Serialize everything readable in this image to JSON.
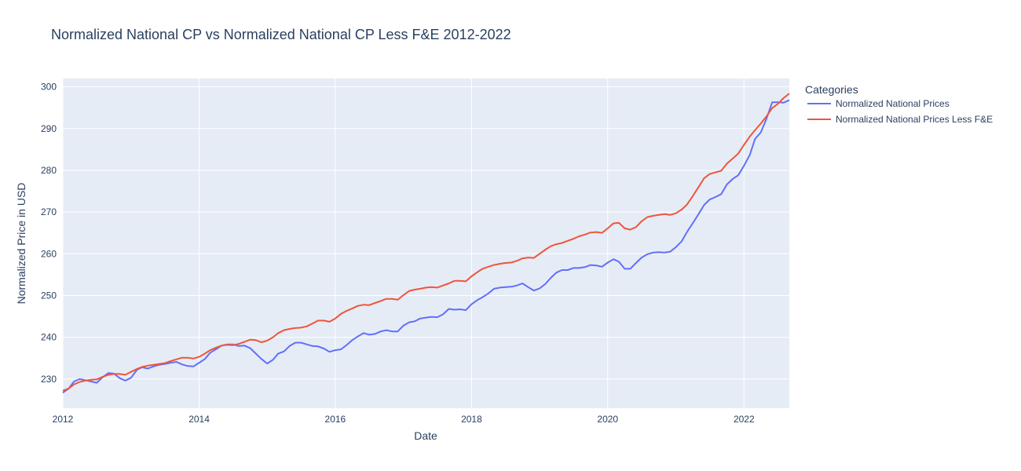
{
  "chart_data": {
    "type": "line",
    "title": "Normalized National CP vs Normalized National CP Less F&E 2012-2022",
    "xlabel": "Date",
    "ylabel": "Normalized Price in USD",
    "xlim": [
      "2012-01-01",
      "2022-09-01"
    ],
    "ylim": [
      223,
      302
    ],
    "x_ticks": [
      "2012",
      "2014",
      "2016",
      "2018",
      "2020",
      "2022"
    ],
    "y_ticks": [
      230,
      240,
      250,
      260,
      270,
      280,
      290,
      300
    ],
    "grid": true,
    "legend_title": "Categories",
    "legend_position": "right",
    "series": [
      {
        "name": "Normalized National Prices",
        "color": "#636efa",
        "x": [
          "2012-01",
          "2012-02",
          "2012-03",
          "2012-04",
          "2012-05",
          "2012-06",
          "2012-07",
          "2012-08",
          "2012-09",
          "2012-10",
          "2012-11",
          "2012-12",
          "2013-01",
          "2013-02",
          "2013-03",
          "2013-04",
          "2013-05",
          "2013-06",
          "2013-07",
          "2013-08",
          "2013-09",
          "2013-10",
          "2013-11",
          "2013-12",
          "2014-01",
          "2014-02",
          "2014-03",
          "2014-04",
          "2014-05",
          "2014-06",
          "2014-07",
          "2014-08",
          "2014-09",
          "2014-10",
          "2014-11",
          "2014-12",
          "2015-01",
          "2015-02",
          "2015-03",
          "2015-04",
          "2015-05",
          "2015-06",
          "2015-07",
          "2015-08",
          "2015-09",
          "2015-10",
          "2015-11",
          "2015-12",
          "2016-01",
          "2016-02",
          "2016-03",
          "2016-04",
          "2016-05",
          "2016-06",
          "2016-07",
          "2016-08",
          "2016-09",
          "2016-10",
          "2016-11",
          "2016-12",
          "2017-01",
          "2017-02",
          "2017-03",
          "2017-04",
          "2017-05",
          "2017-06",
          "2017-07",
          "2017-08",
          "2017-09",
          "2017-10",
          "2017-11",
          "2017-12",
          "2018-01",
          "2018-02",
          "2018-03",
          "2018-04",
          "2018-05",
          "2018-06",
          "2018-07",
          "2018-08",
          "2018-09",
          "2018-10",
          "2018-11",
          "2018-12",
          "2019-01",
          "2019-02",
          "2019-03",
          "2019-04",
          "2019-05",
          "2019-06",
          "2019-07",
          "2019-08",
          "2019-09",
          "2019-10",
          "2019-11",
          "2019-12",
          "2020-01",
          "2020-02",
          "2020-03",
          "2020-04",
          "2020-05",
          "2020-06",
          "2020-07",
          "2020-08",
          "2020-09",
          "2020-10",
          "2020-11",
          "2020-12",
          "2021-01",
          "2021-02",
          "2021-03",
          "2021-04",
          "2021-05",
          "2021-06",
          "2021-07",
          "2021-08",
          "2021-09",
          "2021-10",
          "2021-11",
          "2021-12",
          "2022-01",
          "2022-02",
          "2022-03",
          "2022-04",
          "2022-05",
          "2022-06",
          "2022-07",
          "2022-08",
          "2022-09"
        ],
        "values": [
          226.7,
          227.7,
          229.4,
          230.0,
          229.7,
          229.4,
          229.1,
          230.4,
          231.4,
          231.3,
          230.2,
          229.6,
          230.3,
          232.2,
          232.8,
          232.5,
          233.0,
          233.4,
          233.6,
          233.9,
          234.1,
          233.5,
          233.1,
          233.0,
          233.9,
          234.8,
          236.3,
          237.1,
          238.0,
          238.3,
          238.3,
          237.9,
          238.0,
          237.4,
          236.1,
          234.8,
          233.7,
          234.6,
          236.1,
          236.6,
          237.9,
          238.7,
          238.7,
          238.3,
          237.9,
          237.8,
          237.3,
          236.5,
          236.9,
          237.1,
          238.1,
          239.3,
          240.2,
          241.0,
          240.6,
          240.8,
          241.4,
          241.7,
          241.4,
          241.4,
          242.8,
          243.6,
          243.8,
          244.5,
          244.7,
          244.9,
          244.8,
          245.5,
          246.8,
          246.6,
          246.7,
          246.5,
          247.9,
          248.9,
          249.6,
          250.5,
          251.6,
          251.9,
          252.0,
          252.1,
          252.4,
          252.9,
          252.0,
          251.2,
          251.7,
          252.8,
          254.2,
          255.5,
          256.1,
          256.1,
          256.6,
          256.6,
          256.8,
          257.3,
          257.2,
          256.9,
          257.9,
          258.7,
          258.1,
          256.4,
          256.4,
          257.8,
          259.1,
          259.9,
          260.3,
          260.4,
          260.3,
          260.5,
          261.6,
          263.0,
          265.2,
          267.3,
          269.4,
          271.7,
          273.0,
          273.6,
          274.3,
          276.6,
          277.9,
          278.8,
          281.1,
          283.7,
          287.5,
          289.1,
          292.3,
          296.3,
          296.3,
          296.2,
          296.8
        ]
      },
      {
        "name": "Normalized National Prices Less F&E",
        "color": "#ef553b",
        "x": [
          "2012-01",
          "2012-02",
          "2012-03",
          "2012-04",
          "2012-05",
          "2012-06",
          "2012-07",
          "2012-08",
          "2012-09",
          "2012-10",
          "2012-11",
          "2012-12",
          "2013-01",
          "2013-02",
          "2013-03",
          "2013-04",
          "2013-05",
          "2013-06",
          "2013-07",
          "2013-08",
          "2013-09",
          "2013-10",
          "2013-11",
          "2013-12",
          "2014-01",
          "2014-02",
          "2014-03",
          "2014-04",
          "2014-05",
          "2014-06",
          "2014-07",
          "2014-08",
          "2014-09",
          "2014-10",
          "2014-11",
          "2014-12",
          "2015-01",
          "2015-02",
          "2015-03",
          "2015-04",
          "2015-05",
          "2015-06",
          "2015-07",
          "2015-08",
          "2015-09",
          "2015-10",
          "2015-11",
          "2015-12",
          "2016-01",
          "2016-02",
          "2016-03",
          "2016-04",
          "2016-05",
          "2016-06",
          "2016-07",
          "2016-08",
          "2016-09",
          "2016-10",
          "2016-11",
          "2016-12",
          "2017-01",
          "2017-02",
          "2017-03",
          "2017-04",
          "2017-05",
          "2017-06",
          "2017-07",
          "2017-08",
          "2017-09",
          "2017-10",
          "2017-11",
          "2017-12",
          "2018-01",
          "2018-02",
          "2018-03",
          "2018-04",
          "2018-05",
          "2018-06",
          "2018-07",
          "2018-08",
          "2018-09",
          "2018-10",
          "2018-11",
          "2018-12",
          "2019-01",
          "2019-02",
          "2019-03",
          "2019-04",
          "2019-05",
          "2019-06",
          "2019-07",
          "2019-08",
          "2019-09",
          "2019-10",
          "2019-11",
          "2019-12",
          "2020-01",
          "2020-02",
          "2020-03",
          "2020-04",
          "2020-05",
          "2020-06",
          "2020-07",
          "2020-08",
          "2020-09",
          "2020-10",
          "2020-11",
          "2020-12",
          "2021-01",
          "2021-02",
          "2021-03",
          "2021-04",
          "2021-05",
          "2021-06",
          "2021-07",
          "2021-08",
          "2021-09",
          "2021-10",
          "2021-11",
          "2021-12",
          "2022-01",
          "2022-02",
          "2022-03",
          "2022-04",
          "2022-05",
          "2022-06",
          "2022-07",
          "2022-08",
          "2022-09"
        ],
        "values": [
          227.2,
          227.7,
          228.7,
          229.3,
          229.6,
          229.8,
          229.9,
          230.5,
          231.0,
          231.2,
          231.2,
          231.0,
          231.7,
          232.4,
          232.9,
          233.2,
          233.4,
          233.6,
          233.8,
          234.3,
          234.7,
          235.1,
          235.1,
          234.9,
          235.3,
          236.1,
          236.9,
          237.5,
          238.0,
          238.2,
          238.1,
          238.4,
          238.9,
          239.4,
          239.3,
          238.8,
          239.2,
          240.0,
          241.0,
          241.7,
          242.0,
          242.2,
          242.3,
          242.6,
          243.3,
          244.0,
          244.0,
          243.7,
          244.5,
          245.6,
          246.3,
          246.9,
          247.5,
          247.8,
          247.7,
          248.2,
          248.7,
          249.2,
          249.2,
          249.0,
          250.1,
          251.1,
          251.4,
          251.6,
          251.9,
          252.0,
          251.9,
          252.4,
          252.9,
          253.5,
          253.5,
          253.4,
          254.6,
          255.6,
          256.4,
          256.9,
          257.3,
          257.6,
          257.8,
          257.9,
          258.3,
          258.9,
          259.1,
          259.0,
          260.0,
          261.0,
          261.8,
          262.3,
          262.6,
          263.1,
          263.6,
          264.2,
          264.6,
          265.1,
          265.2,
          265.0,
          266.1,
          267.3,
          267.4,
          266.1,
          265.8,
          266.4,
          267.8,
          268.8,
          269.1,
          269.3,
          269.5,
          269.3,
          269.7,
          270.6,
          271.8,
          273.8,
          275.9,
          278.1,
          279.1,
          279.5,
          279.9,
          281.6,
          282.8,
          284.0,
          286.1,
          288.1,
          289.6,
          291.2,
          292.9,
          294.9,
          295.9,
          297.3,
          298.4
        ]
      }
    ]
  }
}
